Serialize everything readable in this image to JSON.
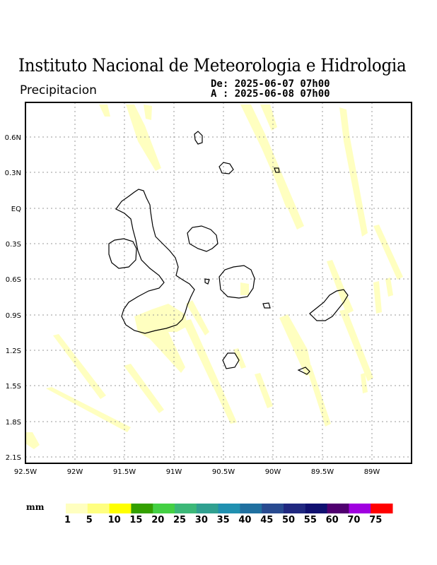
{
  "header": {
    "title": "Instituto Nacional de Meteorologia e Hidrologia",
    "subtitle": "Precipitacion",
    "from": "De: 2025-06-07 07h00",
    "to": "A : 2025-06-08 07h00"
  },
  "map": {
    "lon_range": [
      -92.5,
      -88.5
    ],
    "lat_range": [
      -2.2,
      0.9
    ],
    "gridlines": "dotted",
    "x_ticks": [
      "92.5W",
      "92W",
      "91.5W",
      "91W",
      "90.5W",
      "90W",
      "89.5W",
      "89W"
    ],
    "y_ticks": [
      "0.6N",
      "0.3N",
      "EQ",
      "0.3S",
      "0.6S",
      "0.9S",
      "1.2S",
      "1.5S",
      "1.8S",
      "2.1S"
    ],
    "precip_color": "#ffffc0"
  },
  "legend": {
    "unit": "mm",
    "labels": [
      "1",
      "5",
      "10",
      "15",
      "20",
      "25",
      "30",
      "35",
      "40",
      "45",
      "50",
      "55",
      "60",
      "70",
      "75"
    ],
    "colors": [
      "#ffffc0",
      "#ffff80",
      "#ffff00",
      "#33a000",
      "#44d044",
      "#3cb878",
      "#30a090",
      "#2090b0",
      "#2070a0",
      "#284a90",
      "#202880",
      "#101070",
      "#500070",
      "#a000e0",
      "#ff0000"
    ]
  }
}
